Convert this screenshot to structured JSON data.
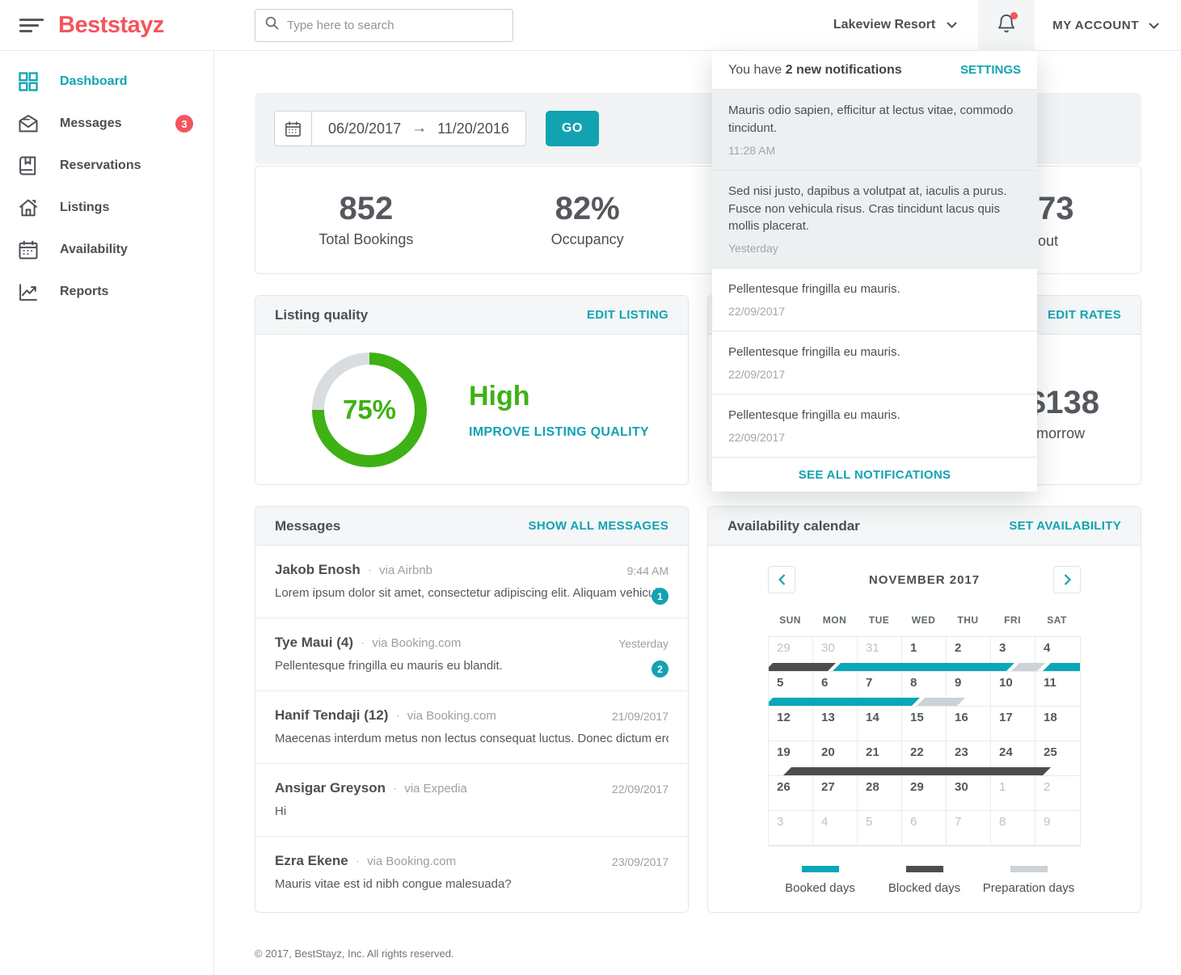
{
  "colors": {
    "accent": "#12a3b3",
    "brand": "#f4555d",
    "success_green": "#3eb114",
    "alert_red": "#f4555d",
    "booked": "#0aa7b7",
    "blocked": "#4d4d4d",
    "preparation": "#ccd2d6",
    "donut_track": "#d9dde0"
  },
  "topbar": {
    "logo": "Beststayz",
    "search_placeholder": "Type here to search",
    "property_selector": "Lakeview Resort",
    "account_label": "MY ACCOUNT"
  },
  "sidebar": {
    "items": [
      {
        "label": "Dashboard",
        "icon": "dashboard",
        "active": true
      },
      {
        "label": "Messages",
        "icon": "messages",
        "badge": "3"
      },
      {
        "label": "Reservations",
        "icon": "reservations"
      },
      {
        "label": "Listings",
        "icon": "listings"
      },
      {
        "label": "Availability",
        "icon": "availability"
      },
      {
        "label": "Reports",
        "icon": "reports"
      }
    ]
  },
  "filters": {
    "date_from": "06/20/2017",
    "arrow": "→",
    "date_to": "11/20/2016",
    "go_label": "GO"
  },
  "stats": [
    {
      "value": "852",
      "label": "Total Bookings"
    },
    {
      "value": "82%",
      "label": "Occupancy"
    }
  ],
  "partial_stat": {
    "value": "73",
    "label": "out"
  },
  "listing_quality": {
    "title": "Listing quality",
    "action": "EDIT LISTING",
    "percent": 75,
    "percent_label": "75%",
    "rating": "High",
    "cta": "IMPROVE LISTING QUALITY"
  },
  "rates": {
    "action": "EDIT RATES",
    "value": "$138",
    "label": "Tomorrow"
  },
  "notifications": {
    "header_prefix": "You have",
    "header_bold": "2 new notifications",
    "settings_label": "SETTINGS",
    "see_all_label": "SEE ALL NOTIFICATIONS",
    "items": [
      {
        "text": "Mauris odio sapien, efficitur at lectus vitae, commodo tincidunt.",
        "time": "11:28 AM",
        "unread": true
      },
      {
        "text": "Sed nisi justo, dapibus a volutpat at, iaculis a purus. Fusce non vehicula risus. Cras tincidunt lacus quis mollis placerat.",
        "time": "Yesterday",
        "unread": true
      },
      {
        "text": "Pellentesque fringilla eu mauris.",
        "time": "22/09/2017"
      },
      {
        "text": "Pellentesque fringilla eu mauris.",
        "time": "22/09/2017"
      },
      {
        "text": "Pellentesque fringilla eu mauris.",
        "time": "22/09/2017"
      }
    ]
  },
  "messages_card": {
    "title": "Messages",
    "action": "SHOW ALL MESSAGES",
    "items": [
      {
        "name": "Jakob Enosh",
        "via": "via Airbnb",
        "time": "9:44 AM",
        "preview": "Lorem ipsum dolor sit amet, consectetur adipiscing elit. Aliquam vehicula n...",
        "badge": "1"
      },
      {
        "name": "Tye Maui (4)",
        "via": "via Booking.com",
        "time": "Yesterday",
        "preview": "Pellentesque fringilla eu mauris eu blandit.",
        "badge": "2"
      },
      {
        "name": "Hanif Tendaji (12)",
        "via": "via Booking.com",
        "time": "21/09/2017",
        "preview": "Maecenas interdum metus non lectus consequat luctus. Donec dictum eros ve..."
      },
      {
        "name": "Ansigar Greyson",
        "via": "via Expedia",
        "time": "22/09/2017",
        "preview": "Hi"
      },
      {
        "name": "Ezra Ekene",
        "via": "via Booking.com",
        "time": "23/09/2017",
        "preview": "Mauris vitae est id nibh congue malesuada?"
      }
    ]
  },
  "calendar": {
    "title": "Availability calendar",
    "action": "SET AVAILABILITY",
    "month": "NOVEMBER 2017",
    "day_headers": [
      "SUN",
      "MON",
      "TUE",
      "WED",
      "THU",
      "FRI",
      "SAT"
    ],
    "weeks": [
      [
        {
          "d": "29",
          "m": true
        },
        {
          "d": "30",
          "m": true
        },
        {
          "d": "31",
          "m": true
        },
        {
          "d": "1"
        },
        {
          "d": "2"
        },
        {
          "d": "3"
        },
        {
          "d": "4"
        }
      ],
      [
        {
          "d": "5"
        },
        {
          "d": "6"
        },
        {
          "d": "7"
        },
        {
          "d": "8"
        },
        {
          "d": "9"
        },
        {
          "d": "10"
        },
        {
          "d": "11"
        }
      ],
      [
        {
          "d": "12"
        },
        {
          "d": "13"
        },
        {
          "d": "14"
        },
        {
          "d": "15"
        },
        {
          "d": "16"
        },
        {
          "d": "17"
        },
        {
          "d": "18"
        }
      ],
      [
        {
          "d": "19"
        },
        {
          "d": "20"
        },
        {
          "d": "21"
        },
        {
          "d": "22"
        },
        {
          "d": "23"
        },
        {
          "d": "24"
        },
        {
          "d": "25"
        }
      ],
      [
        {
          "d": "26"
        },
        {
          "d": "27"
        },
        {
          "d": "28"
        },
        {
          "d": "29"
        },
        {
          "d": "30"
        },
        {
          "d": "1",
          "m": true
        },
        {
          "d": "2",
          "m": true
        }
      ],
      [
        {
          "d": "3",
          "m": true
        },
        {
          "d": "4",
          "m": true
        },
        {
          "d": "5",
          "m": true
        },
        {
          "d": "6",
          "m": true
        },
        {
          "d": "7",
          "m": true
        },
        {
          "d": "8",
          "m": true
        },
        {
          "d": "9",
          "m": true
        }
      ]
    ],
    "bars": [
      {
        "row": 0,
        "type": "blocked",
        "start": 0,
        "end": 1.42
      },
      {
        "row": 0,
        "type": "booked",
        "start": 1.52,
        "end": 5.42
      },
      {
        "row": 0,
        "type": "preparation",
        "start": 5.54,
        "end": 6.12
      },
      {
        "row": 0,
        "type": "booked",
        "start": 6.26,
        "end": 7.15
      },
      {
        "row": 1,
        "type": "booked",
        "start": 0,
        "end": 3.3
      },
      {
        "row": 1,
        "type": "preparation",
        "start": 3.42,
        "end": 4.32
      },
      {
        "row": 3,
        "type": "blocked",
        "start": 0.42,
        "end": 6.25
      }
    ],
    "legend": [
      {
        "label": "Booked days",
        "type": "booked"
      },
      {
        "label": "Blocked days",
        "type": "blocked"
      },
      {
        "label": "Preparation days",
        "type": "preparation"
      }
    ]
  },
  "footer": {
    "copyright": "© 2017, BestStayz, Inc. All rights reserved."
  }
}
